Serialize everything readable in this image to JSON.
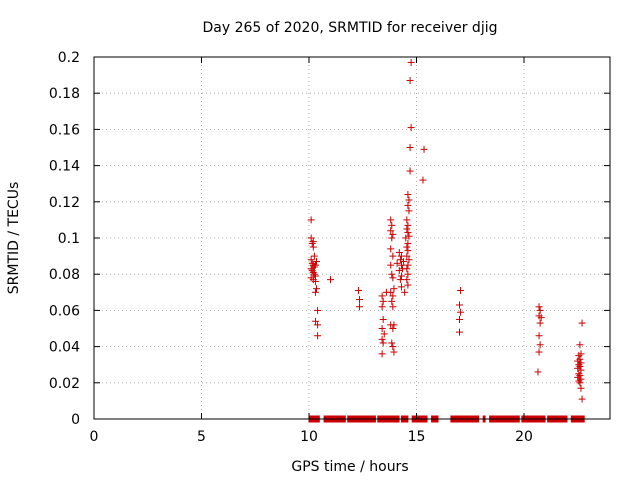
{
  "chart_data": {
    "type": "scatter",
    "title": "Day 265 of 2020, SRMTID for receiver djig",
    "xlabel": "GPS time / hours",
    "ylabel": "SRMTID / TECUs",
    "xlim": [
      0,
      24
    ],
    "ylim": [
      0,
      0.2
    ],
    "xticks": [
      0,
      5,
      10,
      15,
      20
    ],
    "xtick_labels": [
      "0",
      "5",
      "10",
      "15",
      "20"
    ],
    "yticks": [
      0,
      0.02,
      0.04,
      0.06,
      0.08,
      0.1,
      0.12,
      0.14,
      0.16,
      0.18,
      0.2
    ],
    "ytick_labels": [
      "0",
      "0.02",
      "0.04",
      "0.06",
      "0.08",
      "0.1",
      "0.12",
      "0.14",
      "0.16",
      "0.18",
      "0.2"
    ],
    "grid": true,
    "marker": "+",
    "marker_color": "#cc0000",
    "zero_band_x_ranges": [
      [
        10.0,
        10.5
      ],
      [
        10.7,
        11.7
      ],
      [
        11.8,
        13.1
      ],
      [
        13.2,
        14.2
      ],
      [
        14.3,
        14.6
      ],
      [
        14.8,
        15.5
      ],
      [
        15.7,
        16.0
      ],
      [
        16.6,
        17.9
      ],
      [
        18.1,
        18.2
      ],
      [
        18.4,
        19.8
      ],
      [
        19.9,
        21.0
      ],
      [
        21.1,
        22.0
      ],
      [
        22.2,
        22.8
      ]
    ],
    "series": [
      {
        "name": "SRMTID",
        "points": [
          [
            10.1,
            0.11
          ],
          [
            10.1,
            0.1
          ],
          [
            10.15,
            0.097
          ],
          [
            10.2,
            0.098
          ],
          [
            10.2,
            0.095
          ],
          [
            10.25,
            0.09
          ],
          [
            10.1,
            0.088
          ],
          [
            10.15,
            0.086
          ],
          [
            10.2,
            0.085
          ],
          [
            10.25,
            0.084
          ],
          [
            10.1,
            0.083
          ],
          [
            10.15,
            0.082
          ],
          [
            10.2,
            0.081
          ],
          [
            10.25,
            0.08
          ],
          [
            10.3,
            0.079
          ],
          [
            10.1,
            0.078
          ],
          [
            10.2,
            0.077
          ],
          [
            10.3,
            0.076
          ],
          [
            10.35,
            0.072
          ],
          [
            10.3,
            0.07
          ],
          [
            10.4,
            0.06
          ],
          [
            10.3,
            0.054
          ],
          [
            10.4,
            0.052
          ],
          [
            10.4,
            0.046
          ],
          [
            10.35,
            0.087
          ],
          [
            10.3,
            0.085
          ],
          [
            11.0,
            0.077
          ],
          [
            12.3,
            0.071
          ],
          [
            12.35,
            0.066
          ],
          [
            12.35,
            0.062
          ],
          [
            13.4,
            0.068
          ],
          [
            13.45,
            0.065
          ],
          [
            13.4,
            0.062
          ],
          [
            13.45,
            0.055
          ],
          [
            13.4,
            0.05
          ],
          [
            13.5,
            0.047
          ],
          [
            13.4,
            0.044
          ],
          [
            13.45,
            0.042
          ],
          [
            13.4,
            0.036
          ],
          [
            13.6,
            0.07
          ],
          [
            13.8,
            0.11
          ],
          [
            13.85,
            0.107
          ],
          [
            13.8,
            0.104
          ],
          [
            13.9,
            0.102
          ],
          [
            13.85,
            0.1
          ],
          [
            13.8,
            0.094
          ],
          [
            13.9,
            0.09
          ],
          [
            13.8,
            0.085
          ],
          [
            13.85,
            0.08
          ],
          [
            13.9,
            0.078
          ],
          [
            13.8,
            0.07
          ],
          [
            13.9,
            0.068
          ],
          [
            13.95,
            0.072
          ],
          [
            13.85,
            0.065
          ],
          [
            13.9,
            0.062
          ],
          [
            13.95,
            0.052
          ],
          [
            13.8,
            0.052
          ],
          [
            13.9,
            0.05
          ],
          [
            13.85,
            0.042
          ],
          [
            13.9,
            0.04
          ],
          [
            13.95,
            0.037
          ],
          [
            14.2,
            0.092
          ],
          [
            14.3,
            0.09
          ],
          [
            14.25,
            0.088
          ],
          [
            14.3,
            0.085
          ],
          [
            14.35,
            0.083
          ],
          [
            14.2,
            0.082
          ],
          [
            14.3,
            0.079
          ],
          [
            14.25,
            0.077
          ],
          [
            14.4,
            0.087
          ],
          [
            14.1,
            0.086
          ],
          [
            14.3,
            0.073
          ],
          [
            14.45,
            0.07
          ],
          [
            14.55,
            0.11
          ],
          [
            14.6,
            0.107
          ],
          [
            14.55,
            0.105
          ],
          [
            14.6,
            0.103
          ],
          [
            14.65,
            0.101
          ],
          [
            14.5,
            0.1
          ],
          [
            14.6,
            0.097
          ],
          [
            14.55,
            0.095
          ],
          [
            14.6,
            0.093
          ],
          [
            14.55,
            0.09
          ],
          [
            14.65,
            0.088
          ],
          [
            14.6,
            0.085
          ],
          [
            14.55,
            0.083
          ],
          [
            14.6,
            0.08
          ],
          [
            14.55,
            0.077
          ],
          [
            14.6,
            0.074
          ],
          [
            14.65,
            0.115
          ],
          [
            14.6,
            0.118
          ],
          [
            14.65,
            0.121
          ],
          [
            14.6,
            0.124
          ],
          [
            14.7,
            0.137
          ],
          [
            14.7,
            0.15
          ],
          [
            14.75,
            0.161
          ],
          [
            14.7,
            0.187
          ],
          [
            14.75,
            0.197
          ],
          [
            15.35,
            0.149
          ],
          [
            15.3,
            0.132
          ],
          [
            17.05,
            0.071
          ],
          [
            17.0,
            0.063
          ],
          [
            17.05,
            0.059
          ],
          [
            17.0,
            0.055
          ],
          [
            17.0,
            0.048
          ],
          [
            20.7,
            0.062
          ],
          [
            20.75,
            0.06
          ],
          [
            20.7,
            0.057
          ],
          [
            20.8,
            0.056
          ],
          [
            20.75,
            0.053
          ],
          [
            20.7,
            0.046
          ],
          [
            20.75,
            0.041
          ],
          [
            20.7,
            0.037
          ],
          [
            20.65,
            0.026
          ],
          [
            22.7,
            0.053
          ],
          [
            22.6,
            0.041
          ],
          [
            22.65,
            0.036
          ],
          [
            22.55,
            0.035
          ],
          [
            22.6,
            0.033
          ],
          [
            22.5,
            0.032
          ],
          [
            22.65,
            0.031
          ],
          [
            22.55,
            0.03
          ],
          [
            22.6,
            0.029
          ],
          [
            22.5,
            0.028
          ],
          [
            22.65,
            0.027
          ],
          [
            22.55,
            0.025
          ],
          [
            22.6,
            0.024
          ],
          [
            22.5,
            0.023
          ],
          [
            22.65,
            0.022
          ],
          [
            22.55,
            0.021
          ],
          [
            22.6,
            0.02
          ],
          [
            22.65,
            0.017
          ],
          [
            22.7,
            0.011
          ]
        ]
      }
    ]
  }
}
